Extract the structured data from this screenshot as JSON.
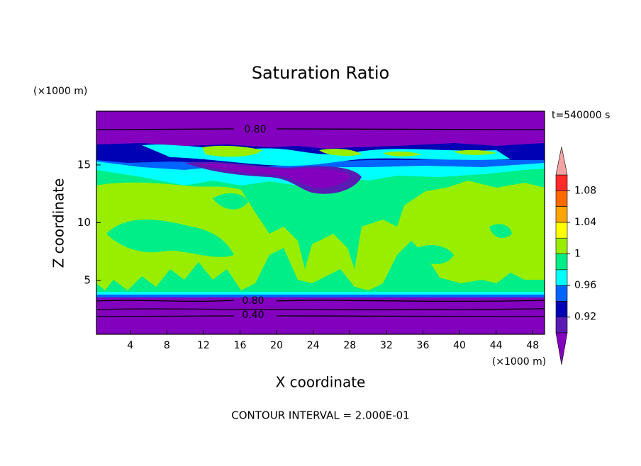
{
  "chart_data": {
    "type": "contour",
    "title": "Saturation Ratio",
    "x_label": "X coordinate",
    "y_label": "Z coordinate",
    "x_unit": "(×1000 m)",
    "y_unit": "(×1000 m)",
    "time_label": "t=540000 s",
    "footer": "CONTOUR INTERVAL = 2.000E-01",
    "xlim": [
      0.3,
      49.3
    ],
    "ylim": [
      0.35,
      19.65
    ],
    "xticks": [
      4,
      8,
      12,
      16,
      20,
      24,
      28,
      32,
      36,
      40,
      44,
      48
    ],
    "yticks": [
      5,
      10,
      15
    ],
    "contour_labels": [
      {
        "value": 0.8,
        "label": "0.80"
      },
      {
        "value": 0.8,
        "label": "0.80"
      },
      {
        "value": 0.4,
        "label": "0.40"
      }
    ],
    "colorbar": {
      "levels": [
        0.9,
        0.92,
        0.94,
        0.96,
        0.98,
        1,
        1.02,
        1.04,
        1.06,
        1.08,
        1.1
      ],
      "colors": [
        "#8200be",
        "#5a1ab4",
        "#0000b4",
        "#0064ff",
        "#00ffff",
        "#00ee88",
        "#99ee00",
        "#ffff00",
        "#ffa500",
        "#ff6a00",
        "#ff2a2a",
        "#f4a3a3"
      ],
      "ticks": [
        0.92,
        0.96,
        1,
        1.04,
        1.08
      ]
    }
  }
}
